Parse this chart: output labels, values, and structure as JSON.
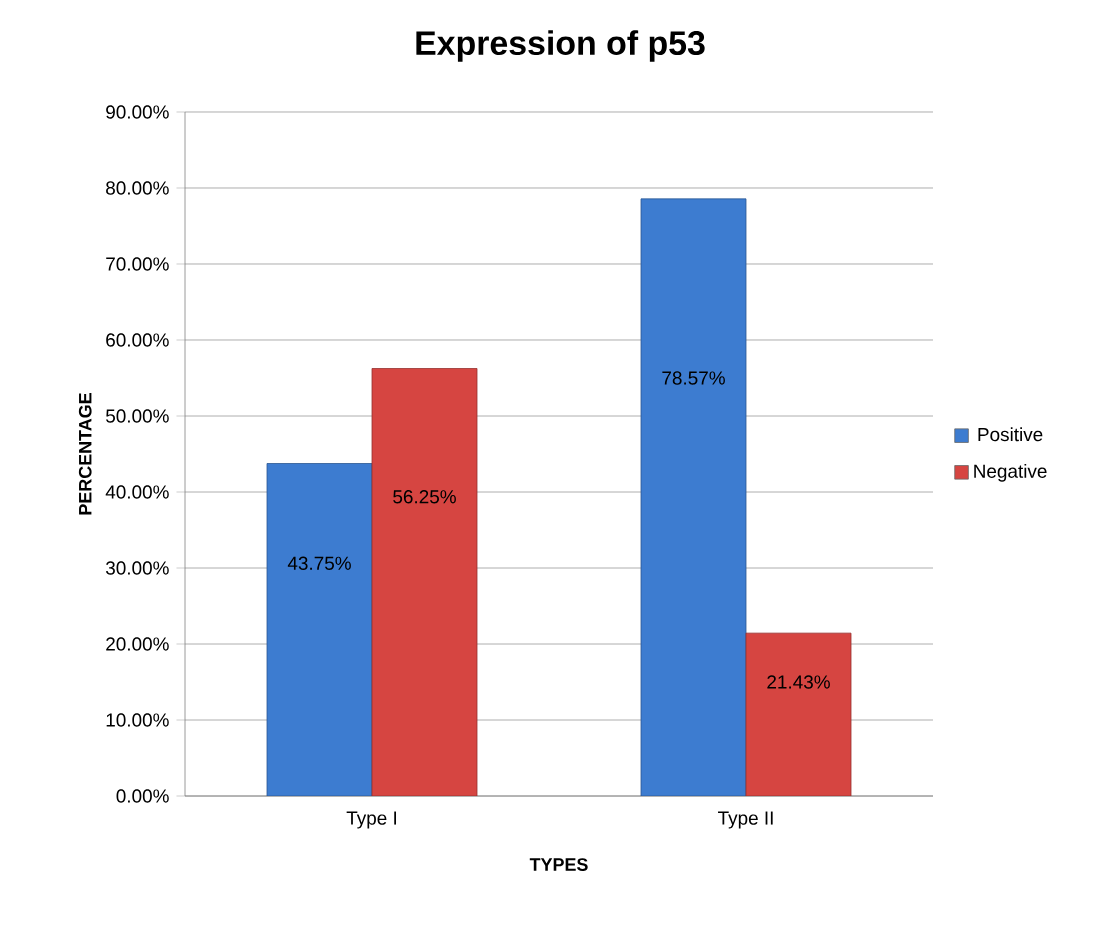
{
  "chart_data": {
    "type": "bar",
    "title": "Expression of p53",
    "xlabel": "TYPES",
    "ylabel": "PERCENTAGE",
    "categories": [
      "Type I",
      "Type II"
    ],
    "series": [
      {
        "name": "Positive",
        "color": "#3d7cd0",
        "values": [
          43.75,
          78.57
        ],
        "value_labels": [
          "43.75%",
          "78.57%"
        ]
      },
      {
        "name": "Negative",
        "color": "#d64541",
        "values": [
          56.25,
          21.43
        ],
        "value_labels": [
          "56.25%",
          "21.43%"
        ]
      }
    ],
    "ylim": [
      0,
      90
    ],
    "yticks": [
      {
        "value": 0,
        "label": "0.00%"
      },
      {
        "value": 10,
        "label": "10.00%"
      },
      {
        "value": 20,
        "label": "20.00%"
      },
      {
        "value": 30,
        "label": "30.00%"
      },
      {
        "value": 40,
        "label": "40.00%"
      },
      {
        "value": 50,
        "label": "50.00%"
      },
      {
        "value": 60,
        "label": "60.00%"
      },
      {
        "value": 70,
        "label": "70.00%"
      },
      {
        "value": 80,
        "label": "80.00%"
      },
      {
        "value": 90,
        "label": "90.00%"
      }
    ],
    "grid": "y",
    "legend": "right"
  }
}
